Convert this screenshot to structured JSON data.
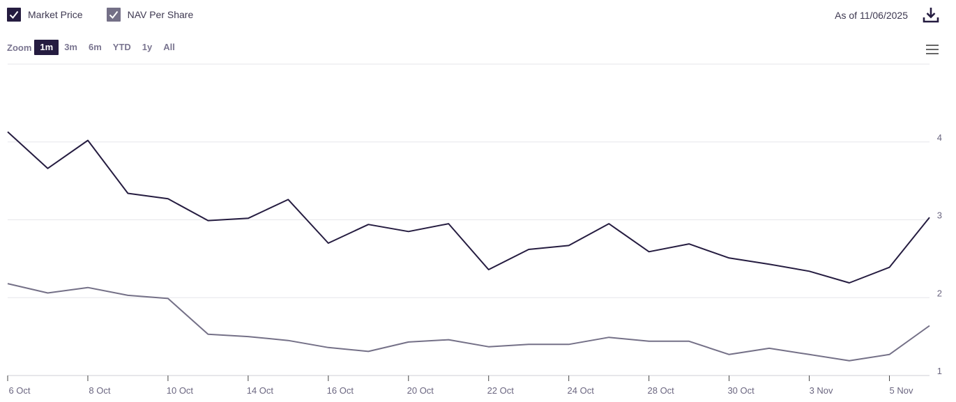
{
  "legend": {
    "items": [
      {
        "label": "Market Price",
        "color": "#251c40",
        "checked": true
      },
      {
        "label": "NAV Per Share",
        "color": "#747087",
        "checked": true
      }
    ]
  },
  "header": {
    "as_of": "As of 11/06/2025"
  },
  "zoom": {
    "label": "Zoom",
    "buttons": [
      "1m",
      "3m",
      "6m",
      "YTD",
      "1y",
      "All"
    ],
    "active": "1m"
  },
  "colors": {
    "market": "#251c40",
    "nav": "#747087",
    "grid": "#e6e6ea",
    "tick_text": "#6b6680"
  },
  "chart_data": {
    "type": "line",
    "x": [
      "6 Oct",
      "7 Oct",
      "8 Oct",
      "9 Oct",
      "10 Oct",
      "13 Oct",
      "14 Oct",
      "15 Oct",
      "16 Oct",
      "17 Oct",
      "20 Oct",
      "21 Oct",
      "22 Oct",
      "23 Oct",
      "24 Oct",
      "27 Oct",
      "28 Oct",
      "29 Oct",
      "30 Oct",
      "31 Oct",
      "3 Nov",
      "4 Nov",
      "5 Nov",
      "6 Nov"
    ],
    "x_tick_labels": [
      "6 Oct",
      "8 Oct",
      "10 Oct",
      "14 Oct",
      "16 Oct",
      "20 Oct",
      "22 Oct",
      "24 Oct",
      "28 Oct",
      "30 Oct",
      "3 Nov",
      "5 Nov"
    ],
    "series": [
      {
        "name": "Market Price",
        "values": [
          4.13,
          3.66,
          4.02,
          3.34,
          3.27,
          2.99,
          3.02,
          3.26,
          2.7,
          2.94,
          2.85,
          2.95,
          2.36,
          2.62,
          2.67,
          2.95,
          2.59,
          2.69,
          2.51,
          2.43,
          2.34,
          2.19,
          2.39,
          3.03
        ]
      },
      {
        "name": "NAV Per Share",
        "values": [
          2.18,
          2.06,
          2.13,
          2.03,
          1.99,
          1.53,
          1.5,
          1.45,
          1.36,
          1.31,
          1.43,
          1.46,
          1.37,
          1.4,
          1.4,
          1.49,
          1.44,
          1.44,
          1.27,
          1.35,
          1.27,
          1.19,
          1.27,
          1.64
        ]
      }
    ],
    "y_ticks": [
      1,
      2,
      3,
      4
    ],
    "ylim": [
      1,
      5
    ],
    "y_axis_side": "right",
    "grid": true,
    "legend_position": "top-left"
  }
}
